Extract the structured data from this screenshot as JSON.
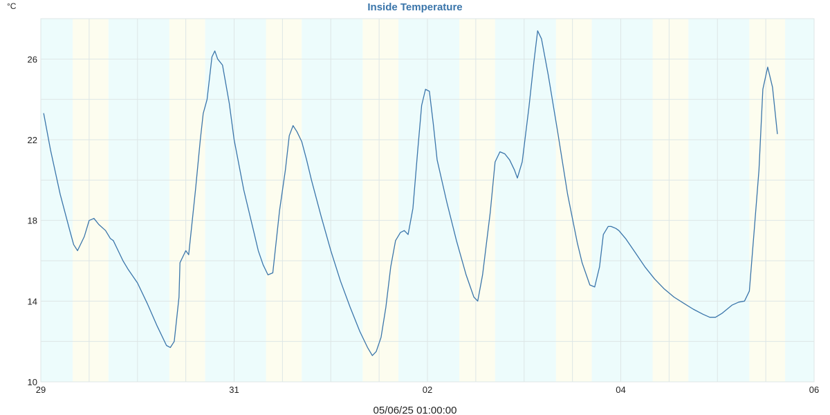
{
  "chart_data": {
    "type": "line",
    "title": "Inside Temperature",
    "ylabel": "°C",
    "footer": "05/06/25 01:00:00",
    "ylim": [
      10,
      28
    ],
    "yticks": [
      10,
      14,
      18,
      22,
      26
    ],
    "xlim_days": [
      0,
      8
    ],
    "xticks": [
      {
        "day": 0,
        "label": "29"
      },
      {
        "day": 2,
        "label": "31"
      },
      {
        "day": 4,
        "label": "02"
      },
      {
        "day": 6,
        "label": "04"
      },
      {
        "day": 8,
        "label": "06"
      }
    ],
    "grid": true,
    "background_bands": [
      {
        "start": 0.0,
        "end": 0.33,
        "period": "night"
      },
      {
        "start": 0.33,
        "end": 0.7,
        "period": "day"
      },
      {
        "start": 0.7,
        "end": 1.33,
        "period": "night"
      },
      {
        "start": 1.33,
        "end": 1.7,
        "period": "day"
      },
      {
        "start": 1.7,
        "end": 2.33,
        "period": "night"
      },
      {
        "start": 2.33,
        "end": 2.7,
        "period": "day"
      },
      {
        "start": 2.7,
        "end": 3.33,
        "period": "night"
      },
      {
        "start": 3.33,
        "end": 3.7,
        "period": "day"
      },
      {
        "start": 3.7,
        "end": 4.33,
        "period": "night"
      },
      {
        "start": 4.33,
        "end": 4.7,
        "period": "day"
      },
      {
        "start": 4.7,
        "end": 5.33,
        "period": "night"
      },
      {
        "start": 5.33,
        "end": 5.7,
        "period": "day"
      },
      {
        "start": 5.7,
        "end": 6.33,
        "period": "night"
      },
      {
        "start": 6.33,
        "end": 6.7,
        "period": "day"
      },
      {
        "start": 6.7,
        "end": 7.33,
        "period": "night"
      },
      {
        "start": 7.33,
        "end": 7.7,
        "period": "day"
      },
      {
        "start": 7.7,
        "end": 8.0,
        "period": "night"
      }
    ],
    "series": [
      {
        "color": "#3a75aa",
        "points": [
          [
            0.03,
            23.3
          ],
          [
            0.1,
            21.5
          ],
          [
            0.2,
            19.3
          ],
          [
            0.3,
            17.5
          ],
          [
            0.34,
            16.8
          ],
          [
            0.38,
            16.5
          ],
          [
            0.45,
            17.2
          ],
          [
            0.5,
            18.0
          ],
          [
            0.55,
            18.1
          ],
          [
            0.6,
            17.8
          ],
          [
            0.67,
            17.5
          ],
          [
            0.72,
            17.1
          ],
          [
            0.75,
            17.0
          ],
          [
            0.8,
            16.5
          ],
          [
            0.85,
            16.0
          ],
          [
            0.9,
            15.6
          ],
          [
            1.0,
            14.9
          ],
          [
            1.1,
            13.9
          ],
          [
            1.2,
            12.8
          ],
          [
            1.3,
            11.8
          ],
          [
            1.34,
            11.7
          ],
          [
            1.38,
            12.0
          ],
          [
            1.43,
            14.2
          ],
          [
            1.44,
            15.9
          ],
          [
            1.5,
            16.5
          ],
          [
            1.53,
            16.3
          ],
          [
            1.6,
            19.5
          ],
          [
            1.65,
            22.0
          ],
          [
            1.68,
            23.3
          ],
          [
            1.72,
            24.0
          ],
          [
            1.77,
            26.1
          ],
          [
            1.8,
            26.4
          ],
          [
            1.83,
            26.0
          ],
          [
            1.88,
            25.7
          ],
          [
            1.95,
            23.8
          ],
          [
            2.0,
            22.0
          ],
          [
            2.1,
            19.5
          ],
          [
            2.2,
            17.5
          ],
          [
            2.25,
            16.5
          ],
          [
            2.3,
            15.8
          ],
          [
            2.35,
            15.3
          ],
          [
            2.4,
            15.4
          ],
          [
            2.47,
            18.5
          ],
          [
            2.53,
            20.5
          ],
          [
            2.57,
            22.2
          ],
          [
            2.61,
            22.7
          ],
          [
            2.65,
            22.4
          ],
          [
            2.7,
            21.9
          ],
          [
            2.75,
            21.0
          ],
          [
            2.8,
            20.0
          ],
          [
            2.9,
            18.2
          ],
          [
            3.0,
            16.5
          ],
          [
            3.1,
            15.0
          ],
          [
            3.2,
            13.7
          ],
          [
            3.3,
            12.5
          ],
          [
            3.38,
            11.7
          ],
          [
            3.43,
            11.3
          ],
          [
            3.47,
            11.5
          ],
          [
            3.52,
            12.2
          ],
          [
            3.57,
            13.7
          ],
          [
            3.62,
            15.7
          ],
          [
            3.67,
            17.0
          ],
          [
            3.72,
            17.4
          ],
          [
            3.76,
            17.5
          ],
          [
            3.8,
            17.3
          ],
          [
            3.85,
            18.6
          ],
          [
            3.9,
            21.5
          ],
          [
            3.94,
            23.7
          ],
          [
            3.98,
            24.5
          ],
          [
            4.02,
            24.4
          ],
          [
            4.06,
            22.8
          ],
          [
            4.1,
            21.0
          ],
          [
            4.2,
            18.9
          ],
          [
            4.3,
            17.0
          ],
          [
            4.4,
            15.3
          ],
          [
            4.48,
            14.2
          ],
          [
            4.52,
            14.0
          ],
          [
            4.57,
            15.3
          ],
          [
            4.65,
            18.4
          ],
          [
            4.7,
            20.9
          ],
          [
            4.75,
            21.4
          ],
          [
            4.8,
            21.3
          ],
          [
            4.85,
            21.0
          ],
          [
            4.9,
            20.5
          ],
          [
            4.93,
            20.1
          ],
          [
            4.98,
            20.9
          ],
          [
            5.05,
            23.6
          ],
          [
            5.1,
            25.8
          ],
          [
            5.14,
            27.4
          ],
          [
            5.18,
            27.0
          ],
          [
            5.25,
            25.2
          ],
          [
            5.35,
            22.3
          ],
          [
            5.45,
            19.3
          ],
          [
            5.55,
            16.9
          ],
          [
            5.6,
            15.9
          ],
          [
            5.68,
            14.8
          ],
          [
            5.73,
            14.7
          ],
          [
            5.78,
            15.7
          ],
          [
            5.82,
            17.3
          ],
          [
            5.87,
            17.7
          ],
          [
            5.9,
            17.7
          ],
          [
            5.95,
            17.6
          ],
          [
            5.98,
            17.5
          ],
          [
            6.05,
            17.1
          ],
          [
            6.15,
            16.4
          ],
          [
            6.25,
            15.7
          ],
          [
            6.35,
            15.1
          ],
          [
            6.45,
            14.6
          ],
          [
            6.55,
            14.2
          ],
          [
            6.65,
            13.9
          ],
          [
            6.75,
            13.6
          ],
          [
            6.85,
            13.35
          ],
          [
            6.92,
            13.2
          ],
          [
            6.98,
            13.2
          ],
          [
            7.05,
            13.4
          ],
          [
            7.1,
            13.6
          ],
          [
            7.15,
            13.8
          ],
          [
            7.22,
            13.95
          ],
          [
            7.28,
            14.0
          ],
          [
            7.33,
            14.5
          ],
          [
            7.38,
            17.5
          ],
          [
            7.43,
            20.5
          ],
          [
            7.47,
            24.5
          ],
          [
            7.52,
            25.6
          ],
          [
            7.57,
            24.6
          ],
          [
            7.62,
            22.3
          ]
        ]
      }
    ],
    "colors": {
      "night_band": "#edfcfc",
      "day_band": "#fdfdef",
      "grid": "#dde6e6",
      "line": "#3a75aa",
      "title": "#3a75aa",
      "text": "#222222"
    }
  }
}
